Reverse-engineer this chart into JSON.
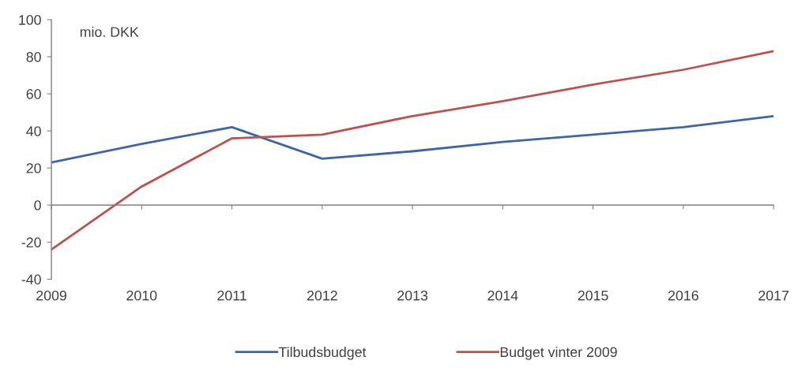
{
  "chart_data": {
    "type": "line",
    "ylabel": "mio. DKK",
    "categories": [
      "2009",
      "2010",
      "2011",
      "2012",
      "2013",
      "2014",
      "2015",
      "2016",
      "2017"
    ],
    "series": [
      {
        "name": "Tilbudsbudget",
        "color": "#3d66a8",
        "values": [
          23,
          33,
          42,
          25,
          29,
          34,
          38,
          42,
          48
        ]
      },
      {
        "name": "Budget vinter 2009",
        "color": "#c0504d",
        "values": [
          -24,
          10,
          36,
          38,
          48,
          56,
          65,
          73,
          83
        ]
      }
    ],
    "ylim": [
      -40,
      100
    ],
    "yticks": [
      -40,
      -20,
      0,
      20,
      40,
      60,
      80,
      100
    ],
    "legend": "bottom",
    "line_style": "solid"
  }
}
